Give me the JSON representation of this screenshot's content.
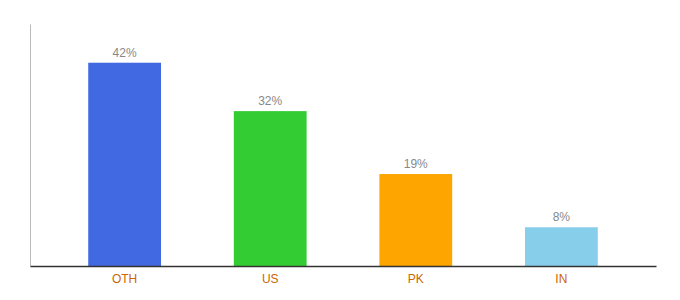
{
  "chart_data": {
    "type": "bar",
    "categories": [
      "OTH",
      "US",
      "PK",
      "IN"
    ],
    "values": [
      42,
      32,
      19,
      8
    ],
    "value_labels": [
      "42%",
      "32%",
      "19%",
      "8%"
    ],
    "data_labels": true,
    "colors": [
      "#4169E1",
      "#33CC33",
      "#FFA500",
      "#87CEEB"
    ],
    "ylim": [
      0,
      50
    ],
    "tick_labels": "x",
    "grid": false
  }
}
